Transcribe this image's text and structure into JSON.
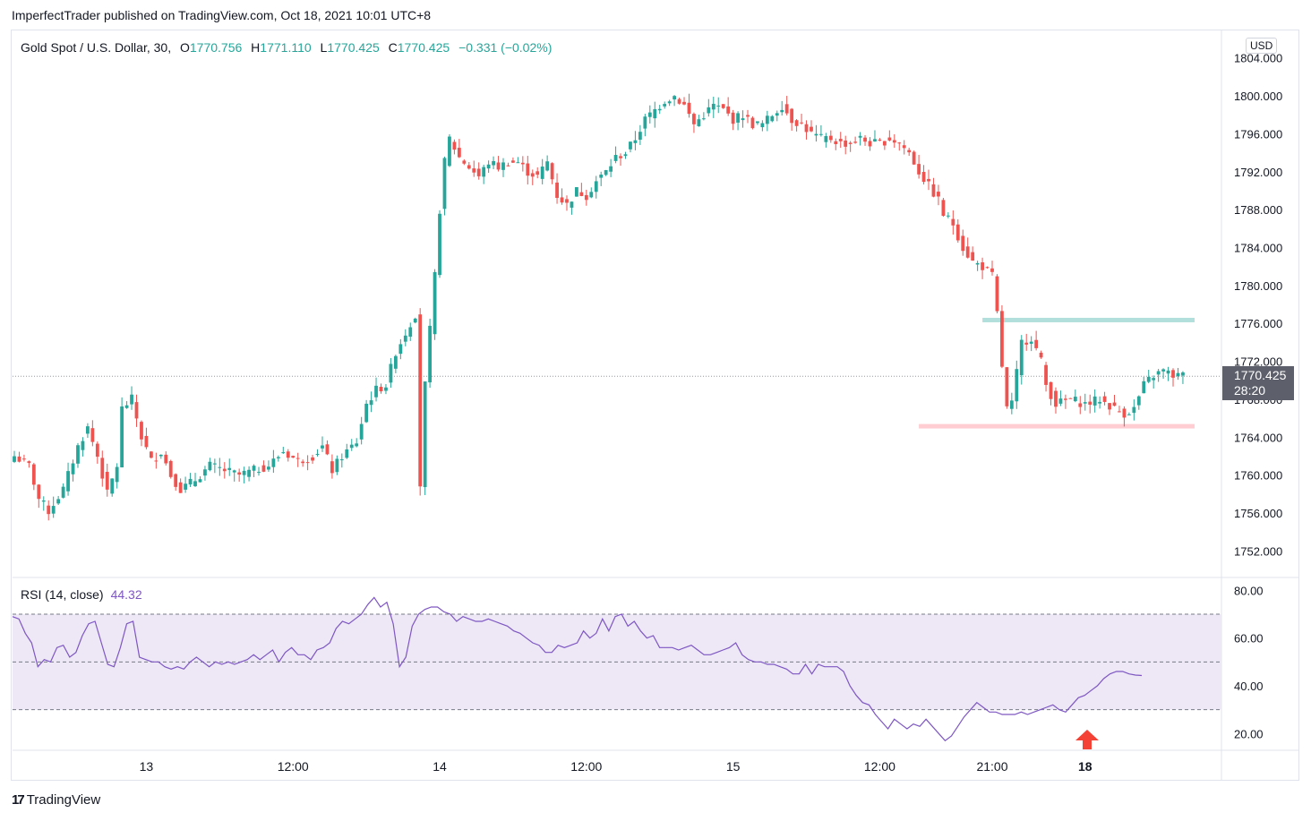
{
  "header": {
    "publisher": "ImperfectTrader published on TradingView.com, Oct 18, 2021 10:01 UTC+8"
  },
  "legend": {
    "symbol": "Gold Spot / U.S. Dollar, 30,",
    "open_label": "O",
    "open": "1770.756",
    "high_label": "H",
    "high": "1771.110",
    "low_label": "L",
    "low": "1770.425",
    "close_label": "C",
    "close": "1770.425",
    "change": "−0.331 (−0.02%)"
  },
  "currency_button": "USD",
  "last_price": {
    "price": "1770.425",
    "countdown": "28:20"
  },
  "rsi_legend": {
    "label": "RSI (14, close)",
    "value": "44.32"
  },
  "footer": {
    "logo": "17",
    "brand": "TradingView"
  },
  "colors": {
    "up": "#26a69a",
    "down": "#ef5350",
    "rsi_line": "#7e57c2",
    "rsi_band": "#ede7f6",
    "resistance": "#b2dfdb",
    "support": "#ffcdd2",
    "arrow": "#f44336",
    "grid": "#e0e3eb"
  },
  "chart_data": [
    {
      "type": "candlestick",
      "price_axis": {
        "ticks": [
          "1752.000",
          "1756.000",
          "1760.000",
          "1764.000",
          "1768.000",
          "1772.000",
          "1776.000",
          "1780.000",
          "1784.000",
          "1788.000",
          "1792.000",
          "1796.000",
          "1800.000",
          "1804.000"
        ],
        "ylim": [
          1749.2,
          1806.9
        ]
      },
      "time_axis": {
        "labels": [
          "13",
          "12:00",
          "14",
          "12:00",
          "15",
          "12:00",
          "21:00",
          "18"
        ],
        "bold_labels": [
          "13",
          "14",
          "15",
          "18"
        ]
      },
      "last_price": 1770.425,
      "levels": [
        {
          "name": "resistance",
          "price": 1776.4
        },
        {
          "name": "support",
          "price": 1765.2
        }
      ],
      "anchors": [
        [
          0,
          1762.0
        ],
        [
          3,
          1761.0
        ],
        [
          5,
          1757.5
        ],
        [
          7,
          1756.2
        ],
        [
          10,
          1758.5
        ],
        [
          13,
          1763.0
        ],
        [
          15,
          1765.0
        ],
        [
          17,
          1762.0
        ],
        [
          19,
          1758.0
        ],
        [
          21,
          1761.0
        ],
        [
          22,
          1767.0
        ],
        [
          24,
          1768.0
        ],
        [
          26,
          1764.0
        ],
        [
          28,
          1761.5
        ],
        [
          30,
          1762.5
        ],
        [
          32,
          1760.0
        ],
        [
          34,
          1758.5
        ],
        [
          37,
          1759.5
        ],
        [
          40,
          1761.0
        ],
        [
          43,
          1760.5
        ],
        [
          46,
          1760.0
        ],
        [
          49,
          1760.5
        ],
        [
          52,
          1761.0
        ],
        [
          55,
          1762.5
        ],
        [
          58,
          1761.5
        ],
        [
          61,
          1762.0
        ],
        [
          63,
          1763.0
        ],
        [
          65,
          1760.5
        ],
        [
          67,
          1762.0
        ],
        [
          70,
          1763.5
        ],
        [
          72,
          1767.5
        ],
        [
          74,
          1769.0
        ],
        [
          76,
          1769.5
        ],
        [
          78,
          1773.0
        ],
        [
          80,
          1775.0
        ],
        [
          82,
          1777.0
        ],
        [
          83,
          1759.0
        ],
        [
          84,
          1769.5
        ],
        [
          86,
          1781.0
        ],
        [
          87,
          1788.0
        ],
        [
          88,
          1793.0
        ],
        [
          89,
          1795.5
        ],
        [
          91,
          1793.5
        ],
        [
          93,
          1792.5
        ],
        [
          95,
          1791.5
        ],
        [
          97,
          1793.0
        ],
        [
          99,
          1792.5
        ],
        [
          101,
          1793.0
        ],
        [
          103,
          1793.0
        ],
        [
          105,
          1792.0
        ],
        [
          107,
          1791.5
        ],
        [
          109,
          1793.0
        ],
        [
          111,
          1789.5
        ],
        [
          113,
          1788.5
        ],
        [
          115,
          1790.0
        ],
        [
          117,
          1789.5
        ],
        [
          119,
          1791.0
        ],
        [
          121,
          1792.0
        ],
        [
          123,
          1793.5
        ],
        [
          125,
          1794.0
        ],
        [
          127,
          1795.5
        ],
        [
          129,
          1797.5
        ],
        [
          131,
          1798.5
        ],
        [
          133,
          1799.5
        ],
        [
          135,
          1800.0
        ],
        [
          137,
          1799.0
        ],
        [
          139,
          1797.0
        ],
        [
          141,
          1798.0
        ],
        [
          143,
          1799.0
        ],
        [
          145,
          1798.5
        ],
        [
          147,
          1797.5
        ],
        [
          149,
          1798.0
        ],
        [
          151,
          1797.0
        ],
        [
          153,
          1797.0
        ],
        [
          155,
          1798.0
        ],
        [
          157,
          1799.0
        ],
        [
          159,
          1797.5
        ],
        [
          161,
          1797.0
        ],
        [
          163,
          1796.0
        ],
        [
          165,
          1795.5
        ],
        [
          167,
          1795.5
        ],
        [
          169,
          1795.0
        ],
        [
          171,
          1795.0
        ],
        [
          173,
          1795.5
        ],
        [
          175,
          1795.0
        ],
        [
          177,
          1795.0
        ],
        [
          179,
          1795.5
        ],
        [
          181,
          1795.0
        ],
        [
          183,
          1794.0
        ],
        [
          185,
          1792.0
        ],
        [
          187,
          1790.5
        ],
        [
          189,
          1789.0
        ],
        [
          190,
          1787.5
        ],
        [
          192,
          1786.5
        ],
        [
          194,
          1784.0
        ],
        [
          196,
          1782.5
        ],
        [
          198,
          1782.0
        ],
        [
          200,
          1781.0
        ],
        [
          201,
          1777.0
        ],
        [
          202,
          1771.5
        ],
        [
          203,
          1767.0
        ],
        [
          204,
          1767.5
        ],
        [
          206,
          1774.0
        ],
        [
          208,
          1774.5
        ],
        [
          210,
          1772.0
        ],
        [
          211,
          1769.5
        ],
        [
          213,
          1767.5
        ],
        [
          216,
          1768.0
        ],
        [
          219,
          1767.5
        ],
        [
          222,
          1768.0
        ],
        [
          225,
          1767.0
        ],
        [
          227,
          1766.5
        ],
        [
          229,
          1767.0
        ],
        [
          231,
          1769.5
        ],
        [
          233,
          1770.5
        ],
        [
          235,
          1771.0
        ],
        [
          237,
          1770.5
        ],
        [
          239,
          1770.5
        ]
      ]
    },
    {
      "type": "line",
      "title": "RSI (14, close)",
      "last_value": 44.32,
      "ylim": [
        13.0,
        85.0
      ],
      "y_ticks": [
        "20.00",
        "40.00",
        "60.00",
        "80.00"
      ],
      "bands": [
        30,
        50,
        70
      ],
      "series": [
        {
          "values": [
            69.0,
            68.0,
            62.0,
            58.0,
            48.0,
            51.0,
            50.0,
            56.0,
            57.0,
            52.0,
            54.0,
            61.0,
            66.0,
            67.0,
            58.0,
            49.0,
            48.0,
            56.0,
            66.0,
            67.0,
            52.0,
            51.0,
            50.0,
            50.0,
            48.0,
            47.0,
            48.0,
            47.0,
            50.0,
            52.0,
            50.0,
            48.0,
            50.0,
            49.0,
            50.0,
            49.0,
            50.0,
            51.0,
            53.0,
            51.0,
            53.0,
            55.0,
            50.0,
            54.0,
            56.0,
            53.0,
            53.0,
            51.0,
            55.0,
            56.0,
            58.0,
            64.0,
            67.0,
            66.0,
            68.0,
            70.0,
            74.0,
            77.0,
            73.0,
            75.0,
            66.0,
            48.0,
            52.0,
            65.0,
            70.0,
            72.0,
            73.0,
            73.0,
            71.0,
            70.0,
            67.0,
            69.0,
            68.0,
            67.0,
            67.0,
            68.0,
            67.0,
            66.0,
            65.0,
            63.0,
            62.0,
            60.0,
            58.0,
            57.0,
            54.0,
            54.0,
            57.0,
            56.0,
            57.0,
            58.0,
            63.0,
            60.0,
            62.0,
            68.0,
            63.0,
            69.0,
            70.0,
            65.0,
            67.0,
            63.0,
            60.0,
            61.0,
            56.0,
            56.0,
            56.0,
            55.0,
            56.0,
            57.0,
            55.0,
            53.0,
            53.0,
            54.0,
            55.0,
            56.0,
            58.0,
            53.0,
            51.0,
            50.0,
            50.0,
            49.0,
            49.0,
            48.0,
            47.0,
            45.0,
            45.0,
            49.0,
            45.0,
            49.0,
            48.0,
            48.0,
            48.0,
            46.0,
            40.0,
            36.0,
            33.0,
            32.0,
            28.0,
            25.0,
            22.0,
            26.0,
            24.0,
            22.0,
            24.0,
            23.0,
            26.0,
            23.0,
            20.0,
            17.0,
            19.0,
            23.0,
            27.0,
            30.0,
            33.0,
            31.0,
            29.0,
            29.0,
            28.0,
            28.0,
            28.0,
            29.0,
            28.0,
            29.0,
            30.0,
            31.0,
            32.0,
            30.0,
            29.0,
            32.0,
            35.0,
            36.0,
            38.0,
            40.0,
            43.0,
            45.0,
            46.0,
            46.0,
            45.0,
            44.5,
            44.3
          ]
        }
      ]
    }
  ]
}
